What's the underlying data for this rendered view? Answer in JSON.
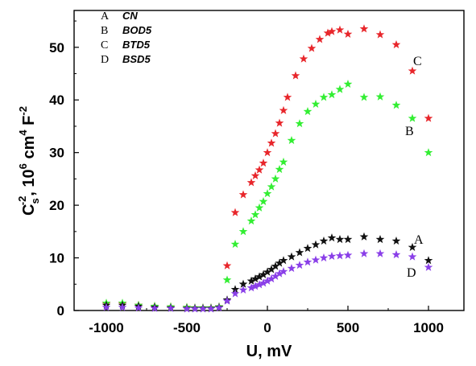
{
  "chart_data": {
    "type": "scatter",
    "xlabel": "U, mV",
    "ylabel": {
      "main": "C",
      "sub": "s",
      "sup1": "-2",
      "mid": ", 10",
      "sup2": "6",
      "mid2": " cm",
      "sup3": "4",
      "mid3": " F",
      "sup4": "-2"
    },
    "xlim": [
      -1200,
      1220
    ],
    "ylim": [
      0,
      57
    ],
    "x_ticks": [
      -1000,
      -500,
      0,
      500,
      1000
    ],
    "y_ticks": [
      0,
      10,
      20,
      30,
      40,
      50
    ],
    "x_tick_labels": [
      "-1000",
      "-500",
      "0",
      "500",
      "1000"
    ],
    "y_tick_labels": [
      "0",
      "10",
      "20",
      "30",
      "40",
      "50"
    ],
    "legend": {
      "placement": "top-left",
      "entries": [
        {
          "letter": "A",
          "name": "CN"
        },
        {
          "letter": "B",
          "name": "BOD5"
        },
        {
          "letter": "C",
          "name": "BTD5"
        },
        {
          "letter": "D",
          "name": "BSD5"
        }
      ]
    },
    "annotations": [
      {
        "text": "C",
        "series": "BTD5"
      },
      {
        "text": "B",
        "series": "BOD5"
      },
      {
        "text": "A",
        "series": "CN"
      },
      {
        "text": "D",
        "series": "BSD5"
      }
    ],
    "marker": "star",
    "series": [
      {
        "name": "BTD5",
        "color": "#e8262b",
        "points": [
          [
            -1000,
            1.3
          ],
          [
            -900,
            1.3
          ],
          [
            -800,
            1.0
          ],
          [
            -700,
            0.8
          ],
          [
            -600,
            0.7
          ],
          [
            -500,
            0.6
          ],
          [
            -450,
            0.5
          ],
          [
            -400,
            0.5
          ],
          [
            -350,
            0.5
          ],
          [
            -300,
            0.7
          ],
          [
            -250,
            8.5
          ],
          [
            -200,
            18.6
          ],
          [
            -150,
            22.0
          ],
          [
            -100,
            24.3
          ],
          [
            -75,
            25.6
          ],
          [
            -50,
            26.7
          ],
          [
            -25,
            28.0
          ],
          [
            0,
            30.0
          ],
          [
            25,
            31.8
          ],
          [
            50,
            33.6
          ],
          [
            75,
            35.6
          ],
          [
            100,
            38.0
          ],
          [
            125,
            40.5
          ],
          [
            175,
            44.6
          ],
          [
            225,
            47.8
          ],
          [
            275,
            49.8
          ],
          [
            325,
            51.5
          ],
          [
            375,
            52.7
          ],
          [
            400,
            53.0
          ],
          [
            450,
            53.3
          ],
          [
            500,
            52.5
          ],
          [
            600,
            53.5
          ],
          [
            700,
            52.4
          ],
          [
            800,
            50.5
          ],
          [
            900,
            45.5
          ],
          [
            1000,
            36.5
          ]
        ]
      },
      {
        "name": "BOD5",
        "color": "#33ee33",
        "points": [
          [
            -1000,
            1.4
          ],
          [
            -900,
            1.4
          ],
          [
            -800,
            1.0
          ],
          [
            -700,
            0.8
          ],
          [
            -600,
            0.7
          ],
          [
            -500,
            0.6
          ],
          [
            -450,
            0.5
          ],
          [
            -400,
            0.5
          ],
          [
            -350,
            0.5
          ],
          [
            -300,
            0.7
          ],
          [
            -250,
            5.8
          ],
          [
            -200,
            12.6
          ],
          [
            -150,
            15.0
          ],
          [
            -100,
            17.0
          ],
          [
            -75,
            18.2
          ],
          [
            -50,
            19.5
          ],
          [
            -25,
            20.7
          ],
          [
            0,
            22.2
          ],
          [
            25,
            23.5
          ],
          [
            50,
            25.0
          ],
          [
            75,
            26.8
          ],
          [
            100,
            28.2
          ],
          [
            150,
            32.3
          ],
          [
            200,
            35.5
          ],
          [
            250,
            37.8
          ],
          [
            300,
            39.2
          ],
          [
            350,
            40.5
          ],
          [
            400,
            41.0
          ],
          [
            450,
            42.0
          ],
          [
            500,
            43.0
          ],
          [
            600,
            40.5
          ],
          [
            700,
            40.6
          ],
          [
            800,
            39.0
          ],
          [
            900,
            36.5
          ],
          [
            1000,
            30.0
          ]
        ]
      },
      {
        "name": "CN",
        "color": "#111111",
        "points": [
          [
            -1000,
            1.0
          ],
          [
            -900,
            1.0
          ],
          [
            -800,
            0.8
          ],
          [
            -700,
            0.6
          ],
          [
            -600,
            0.5
          ],
          [
            -500,
            0.4
          ],
          [
            -450,
            0.4
          ],
          [
            -400,
            0.4
          ],
          [
            -350,
            0.4
          ],
          [
            -300,
            0.6
          ],
          [
            -250,
            2.0
          ],
          [
            -200,
            4.0
          ],
          [
            -150,
            5.0
          ],
          [
            -100,
            5.6
          ],
          [
            -75,
            6.0
          ],
          [
            -50,
            6.4
          ],
          [
            -25,
            6.8
          ],
          [
            0,
            7.3
          ],
          [
            25,
            7.8
          ],
          [
            50,
            8.4
          ],
          [
            75,
            9.0
          ],
          [
            100,
            9.5
          ],
          [
            150,
            10.2
          ],
          [
            200,
            11.0
          ],
          [
            250,
            11.8
          ],
          [
            300,
            12.5
          ],
          [
            350,
            13.2
          ],
          [
            400,
            13.8
          ],
          [
            450,
            13.5
          ],
          [
            500,
            13.5
          ],
          [
            600,
            14.0
          ],
          [
            700,
            13.5
          ],
          [
            800,
            13.2
          ],
          [
            900,
            12.0
          ],
          [
            1000,
            9.5
          ]
        ]
      },
      {
        "name": "BSD5",
        "color": "#8a3fe8",
        "points": [
          [
            -1000,
            0.6
          ],
          [
            -900,
            0.6
          ],
          [
            -800,
            0.5
          ],
          [
            -700,
            0.4
          ],
          [
            -600,
            0.4
          ],
          [
            -500,
            0.3
          ],
          [
            -450,
            0.3
          ],
          [
            -400,
            0.3
          ],
          [
            -350,
            0.3
          ],
          [
            -300,
            0.5
          ],
          [
            -250,
            1.8
          ],
          [
            -200,
            3.2
          ],
          [
            -150,
            3.9
          ],
          [
            -100,
            4.3
          ],
          [
            -75,
            4.6
          ],
          [
            -50,
            4.9
          ],
          [
            -25,
            5.2
          ],
          [
            0,
            5.6
          ],
          [
            25,
            6.0
          ],
          [
            50,
            6.5
          ],
          [
            75,
            7.0
          ],
          [
            100,
            7.4
          ],
          [
            150,
            8.0
          ],
          [
            200,
            8.6
          ],
          [
            250,
            9.2
          ],
          [
            300,
            9.6
          ],
          [
            350,
            10.0
          ],
          [
            400,
            10.3
          ],
          [
            450,
            10.4
          ],
          [
            500,
            10.5
          ],
          [
            600,
            10.8
          ],
          [
            700,
            10.8
          ],
          [
            800,
            10.6
          ],
          [
            900,
            10.2
          ],
          [
            1000,
            8.2
          ]
        ]
      }
    ]
  }
}
